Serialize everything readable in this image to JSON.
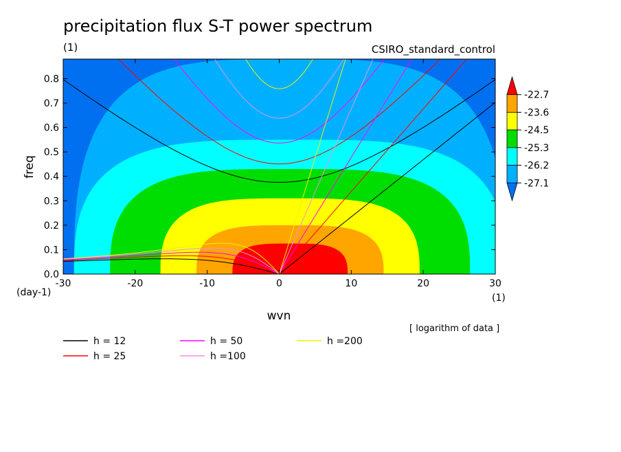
{
  "chart_data": {
    "type": "heatmap",
    "title": "precipitation flux S-T power spectrum",
    "subtitle_left": "(1)",
    "subtitle_right": "CSIRO_standard_control",
    "xlabel": "wvn",
    "ylabel": "freq",
    "x_unit_label": "(1)",
    "y_unit_label": "(day-1)",
    "xlim": [
      -30,
      30
    ],
    "ylim": [
      0,
      0.88
    ],
    "x_ticks": [
      -30,
      -20,
      -10,
      0,
      10,
      20,
      30
    ],
    "x_tick_labels": [
      "-30",
      "-20",
      "-10",
      "0",
      "10",
      "20",
      "30"
    ],
    "y_ticks": [
      0.0,
      0.1,
      0.2,
      0.3,
      0.4,
      0.5,
      0.6,
      0.7,
      0.8
    ],
    "y_tick_labels": [
      "0.0",
      "0.1",
      "0.2",
      "0.3",
      "0.4",
      "0.5",
      "0.6",
      "0.7",
      "0.8"
    ],
    "colorbar": {
      "levels": [
        "-22.7",
        "-23.6",
        "-24.5",
        "-25.3",
        "-26.2",
        "-27.1"
      ],
      "colors": [
        "#ff0000",
        "#ffa500",
        "#ffff00",
        "#00dd00",
        "#00ffff",
        "#00b0ff",
        "#0070f0"
      ],
      "note": "[ logarithm of data ]"
    },
    "contour_regions": [
      {
        "level": "-27.1",
        "color": "#00b0ff",
        "half_width": 30,
        "top_freq": 0.88
      },
      {
        "level": "-26.2",
        "color": "#00ffff",
        "half_width": 30,
        "top_freq": 0.55
      },
      {
        "level": "-25.3",
        "color": "#00dd00",
        "half_width": 25,
        "top_freq": 0.43
      },
      {
        "level": "-24.5",
        "color": "#ffff00",
        "half_width": 18,
        "top_freq": 0.31
      },
      {
        "level": "-23.6",
        "color": "#ffa500",
        "half_width": 13,
        "top_freq": 0.2
      },
      {
        "level": "-22.7",
        "color": "#ff0000",
        "half_width": 8,
        "top_freq": 0.125
      }
    ],
    "series": [
      {
        "name": "h = 12",
        "h": 12,
        "color": "#000000"
      },
      {
        "name": "h = 25",
        "h": 25,
        "color": "#ff0000"
      },
      {
        "name": "h = 50",
        "h": 50,
        "color": "#ff00ff"
      },
      {
        "name": "h =100",
        "h": 100,
        "color": "#e890e8"
      },
      {
        "name": "h =200",
        "h": 200,
        "color": "#f0f000"
      }
    ]
  }
}
